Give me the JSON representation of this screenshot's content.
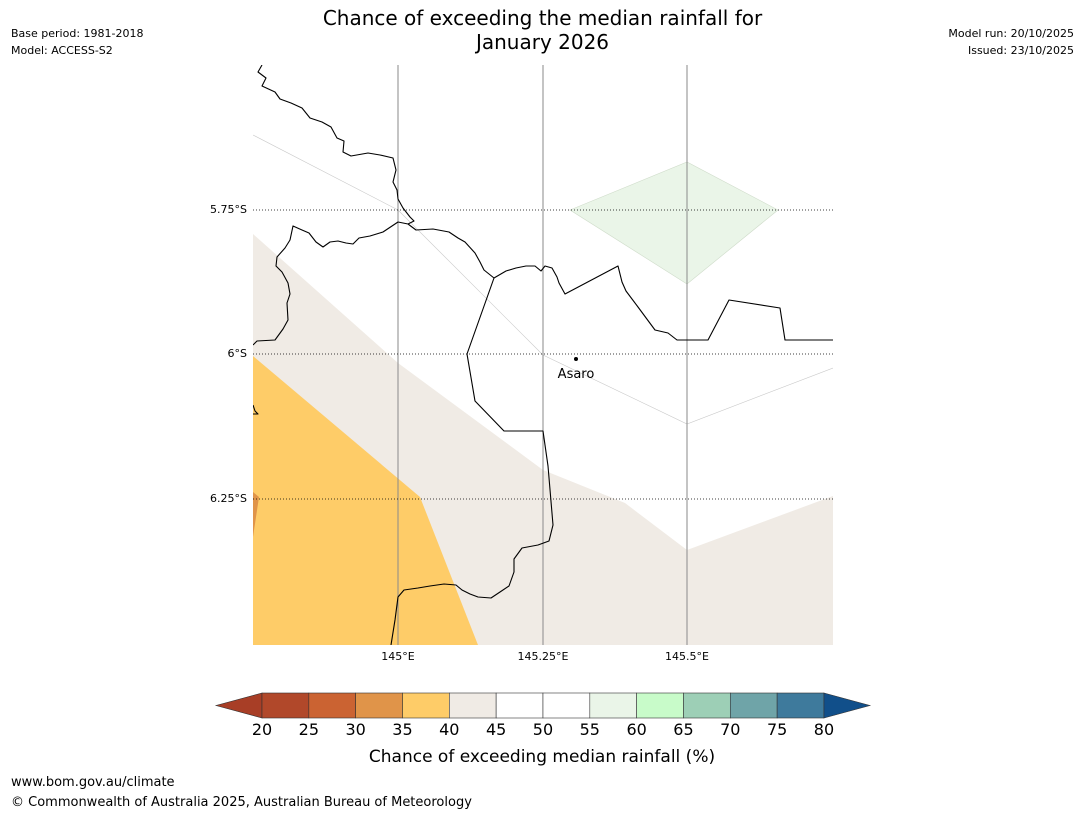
{
  "header": {
    "base_period": "Base period: 1981-2018",
    "model": "Model: ACCESS-S2",
    "model_run": "Model run: 20/10/2025",
    "issued": "Issued: 23/10/2025"
  },
  "title": {
    "line1": "Chance of exceeding the median rainfall for",
    "line2": "January 2026"
  },
  "map": {
    "lat_labels": [
      "5.75°S",
      "6°S",
      "6.25°S"
    ],
    "lon_labels": [
      "145°E",
      "145.25°E",
      "145.5°E"
    ],
    "place": {
      "name": "Asaro"
    }
  },
  "colorbar": {
    "ticks": [
      "20",
      "25",
      "30",
      "35",
      "40",
      "45",
      "50",
      "55",
      "60",
      "65",
      "70",
      "75",
      "80"
    ],
    "colors": [
      "#a83e26",
      "#b1482a",
      "#cb6332",
      "#e09449",
      "#fecc68",
      "#f0ebe5",
      "#ffffff",
      "#ffffff",
      "#eaf5e8",
      "#c8fbc9",
      "#9dcfb6",
      "#6fa4a8",
      "#3e7a9c",
      "#114f8a"
    ],
    "label": "Chance of exceeding median rainfall (%)"
  },
  "footer": {
    "url": "www.bom.gov.au/climate",
    "copyright": "© Commonwealth of Australia 2025, Australian Bureau of Meteorology"
  }
}
